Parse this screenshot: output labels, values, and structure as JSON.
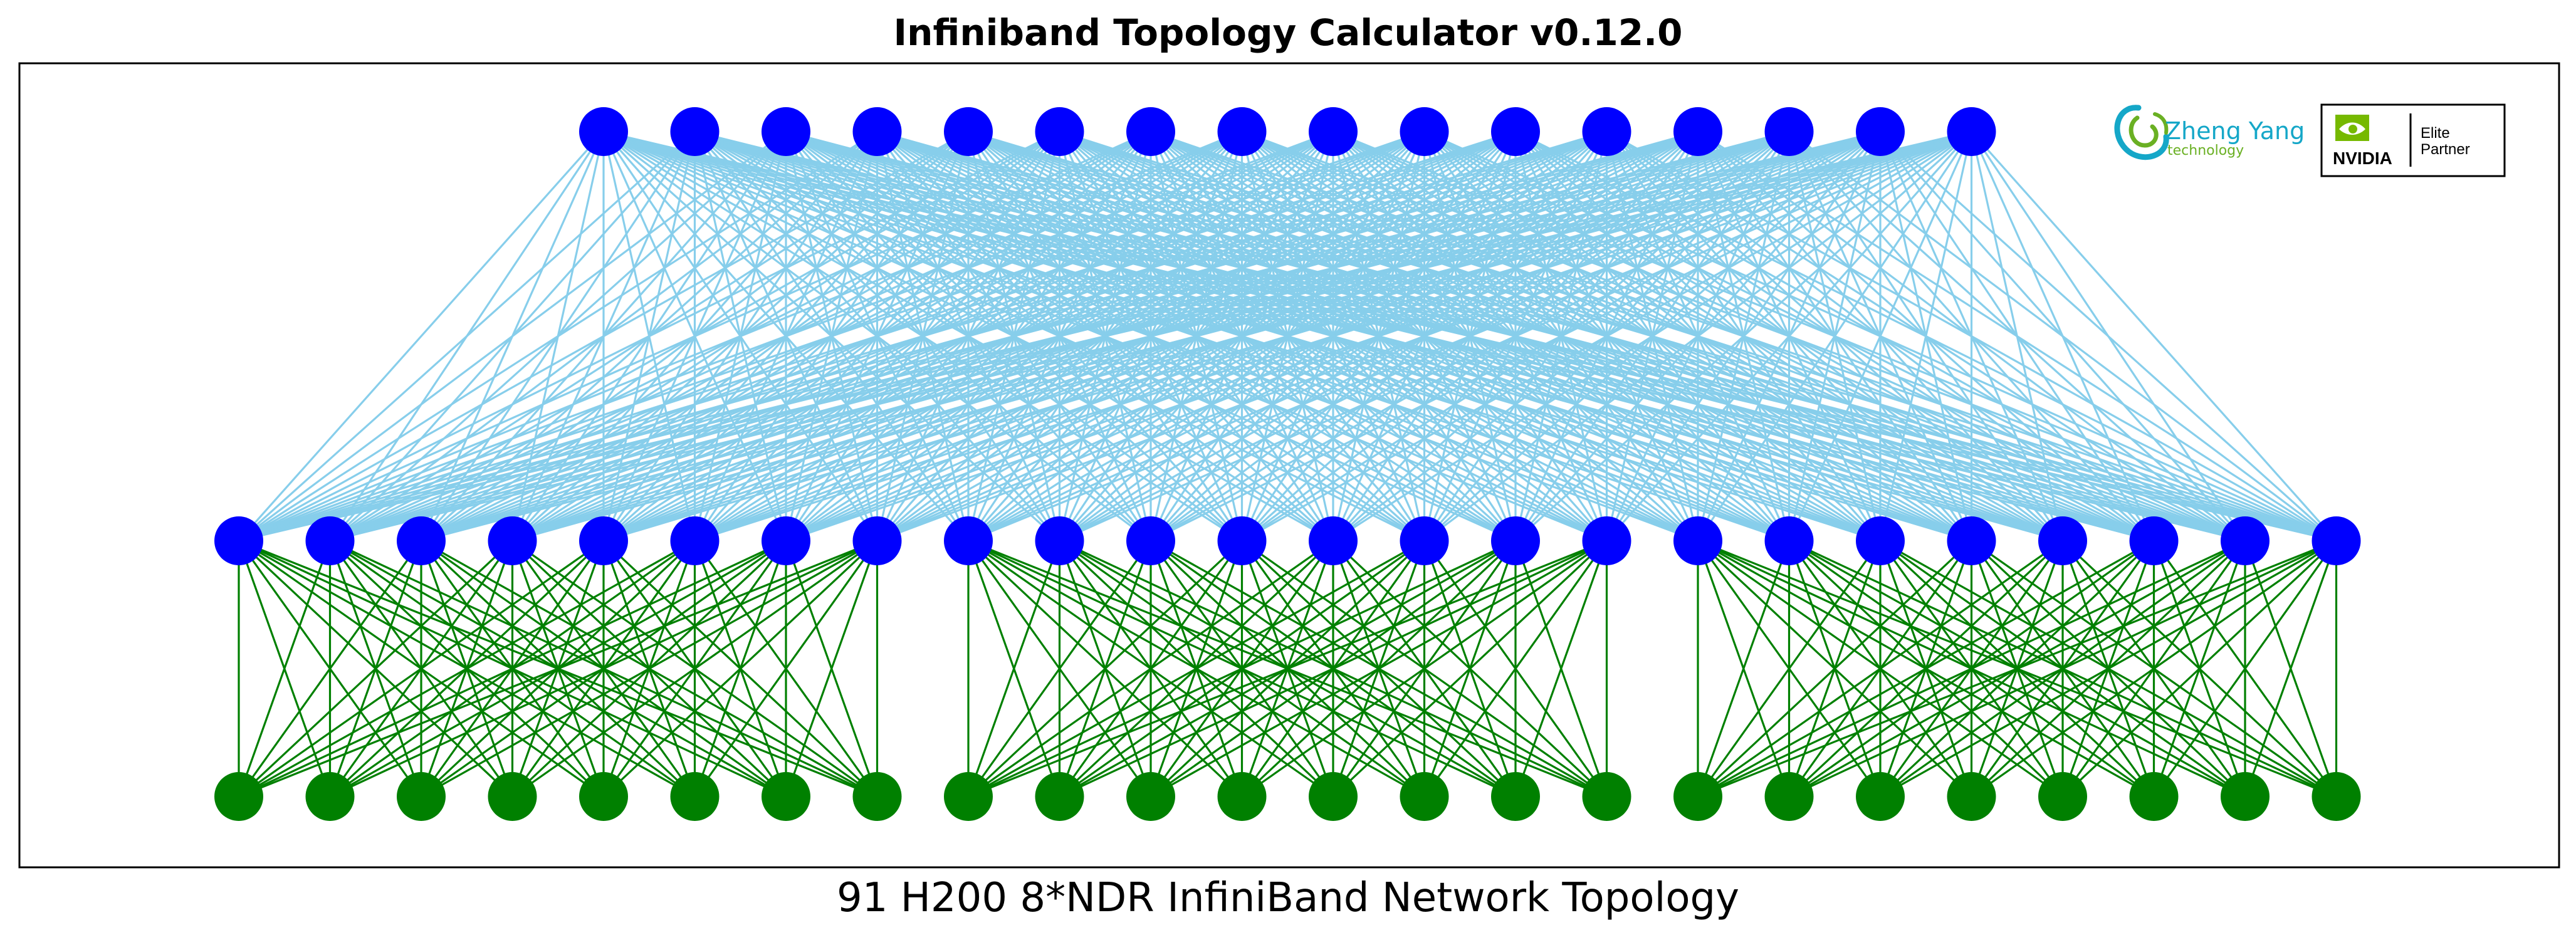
{
  "title": "Infiniband Topology Calculator v0.12.0",
  "caption": "91 H200 8*NDR InfiniBand Network Topology",
  "colors": {
    "spine_node": "#0000ff",
    "leaf_node": "#0000ff",
    "server_node": "#008000",
    "spine_leaf_link": "#87ceeb",
    "leaf_server_link": "#008000",
    "logo_teal": "#15a7c8",
    "logo_green": "#6ab023",
    "nvidia_green": "#76b900"
  },
  "topology": {
    "spine_count": 16,
    "leaf_groups": 3,
    "leafs_per_group": 8,
    "servers_per_group": 8
  },
  "logos": {
    "company_name": "Zheng Yang",
    "company_sub": "technology",
    "partner_brand": "NVIDIA",
    "partner_line1": "Elite",
    "partner_line2": "Partner"
  }
}
